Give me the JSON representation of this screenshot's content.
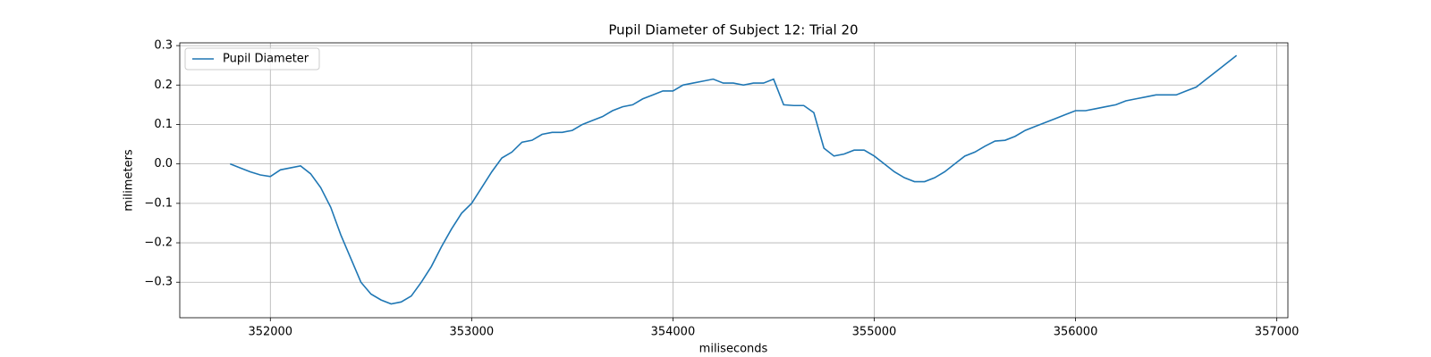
{
  "chart_data": {
    "type": "line",
    "title": "Pupil Diameter of Subject 12: Trial 20",
    "xlabel": "miliseconds",
    "ylabel": "milimeters",
    "x": [
      351800,
      351850,
      351900,
      351950,
      352000,
      352050,
      352100,
      352150,
      352200,
      352250,
      352300,
      352350,
      352400,
      352450,
      352500,
      352550,
      352600,
      352650,
      352700,
      352750,
      352800,
      352850,
      352900,
      352950,
      353000,
      353050,
      353100,
      353150,
      353200,
      353250,
      353300,
      353350,
      353400,
      353450,
      353500,
      353550,
      353600,
      353650,
      353700,
      353750,
      353800,
      353850,
      353900,
      353950,
      354000,
      354050,
      354100,
      354150,
      354200,
      354250,
      354300,
      354350,
      354400,
      354450,
      354500,
      354550,
      354600,
      354650,
      354700,
      354750,
      354800,
      354850,
      354900,
      354950,
      355000,
      355050,
      355100,
      355150,
      355200,
      355250,
      355300,
      355350,
      355400,
      355450,
      355500,
      355550,
      355600,
      355650,
      355700,
      355750,
      355800,
      355850,
      355900,
      355950,
      356000,
      356050,
      356100,
      356150,
      356200,
      356250,
      356300,
      356350,
      356400,
      356450,
      356500,
      356550,
      356600,
      356650,
      356700,
      356750,
      356800
    ],
    "series": [
      {
        "name": "Pupil Diameter",
        "color": "#1f77b4",
        "values": [
          0.0,
          -0.01,
          -0.02,
          -0.028,
          -0.032,
          -0.015,
          -0.01,
          -0.005,
          -0.025,
          -0.06,
          -0.11,
          -0.18,
          -0.24,
          -0.3,
          -0.33,
          -0.345,
          -0.355,
          -0.35,
          -0.335,
          -0.3,
          -0.26,
          -0.21,
          -0.165,
          -0.125,
          -0.1,
          -0.06,
          -0.02,
          0.015,
          0.03,
          0.055,
          0.06,
          0.075,
          0.08,
          0.08,
          0.085,
          0.1,
          0.11,
          0.12,
          0.135,
          0.145,
          0.15,
          0.165,
          0.175,
          0.185,
          0.185,
          0.2,
          0.205,
          0.21,
          0.215,
          0.205,
          0.205,
          0.2,
          0.205,
          0.205,
          0.215,
          0.15,
          0.148,
          0.148,
          0.13,
          0.04,
          0.02,
          0.025,
          0.035,
          0.035,
          0.02,
          0.0,
          -0.02,
          -0.035,
          -0.045,
          -0.045,
          -0.035,
          -0.02,
          0.0,
          0.02,
          0.03,
          0.045,
          0.058,
          0.06,
          0.07,
          0.085,
          0.095,
          0.105,
          0.115,
          0.125,
          0.135,
          0.135,
          0.14,
          0.145,
          0.15,
          0.16,
          0.165,
          0.17,
          0.175,
          0.175,
          0.175,
          0.185,
          0.195,
          0.215,
          0.235,
          0.255,
          0.275
        ]
      }
    ],
    "xlim": [
      351550,
      357055
    ],
    "ylim": [
      -0.39,
      0.307
    ],
    "xticks": [
      352000,
      353000,
      354000,
      355000,
      356000,
      357000
    ],
    "yticks": [
      {
        "value": -0.3,
        "label": "−0.3"
      },
      {
        "value": -0.2,
        "label": "−0.2"
      },
      {
        "value": -0.1,
        "label": "−0.1"
      },
      {
        "value": 0.0,
        "label": "0.0"
      },
      0.1,
      0.2,
      0.3
    ],
    "grid": true,
    "legend": "upper-left"
  }
}
